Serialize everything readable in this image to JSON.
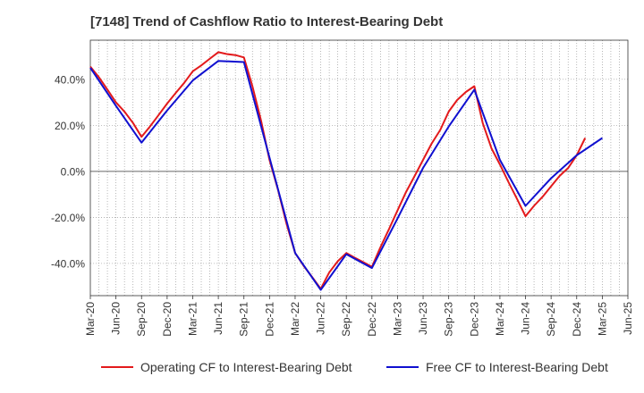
{
  "chart_data": {
    "type": "line",
    "title": "[7148]  Trend of Cashflow Ratio to Interest-Bearing Debt",
    "xlabel": "",
    "ylabel": "",
    "x": [
      "Mar-20",
      "Jun-20",
      "Sep-20",
      "Dec-20",
      "Mar-21",
      "Jun-21",
      "Sep-21",
      "Dec-21",
      "Mar-22",
      "Jun-22",
      "Sep-22",
      "Dec-22",
      "Mar-23",
      "Jun-23",
      "Sep-23",
      "Dec-23",
      "Mar-24",
      "Jun-24",
      "Sep-24",
      "Dec-24",
      "Mar-25",
      "Jun-25"
    ],
    "x_ticks": [
      "Mar-20",
      "Jun-20",
      "Sep-20",
      "Dec-20",
      "Mar-21",
      "Jun-21",
      "Sep-21",
      "Dec-21",
      "Mar-22",
      "Jun-22",
      "Sep-22",
      "Dec-22",
      "Mar-23",
      "Jun-23",
      "Sep-23",
      "Dec-23",
      "Mar-24",
      "Jun-24",
      "Sep-24",
      "Dec-24",
      "Mar-25",
      "Jun-25"
    ],
    "y_ticks": [
      "-40.0%",
      "-20.0%",
      "0.0%",
      "20.0%",
      "40.0%"
    ],
    "y_tick_values": [
      -40,
      -20,
      0,
      20,
      40
    ],
    "ylim": [
      -54,
      57
    ],
    "grid": true,
    "legend_position": "bottom",
    "series": [
      {
        "name": "Operating CF to Interest-Bearing Debt",
        "color": "#e31a1c",
        "values": [
          45.5,
          30,
          15,
          29.5,
          43.5,
          51.8,
          49.5,
          5,
          -35.5,
          -51,
          -35.5,
          -41.5,
          -17,
          5,
          26,
          37,
          3,
          -19.5,
          -6.5,
          7,
          null,
          null
        ]
      },
      {
        "name": "Free CF to Interest-Bearing Debt",
        "color": "#1010d0",
        "values": [
          45,
          28.5,
          12.5,
          26.5,
          39.5,
          48,
          47.5,
          6,
          -35.5,
          -51.5,
          -36,
          -42,
          -20.5,
          1.5,
          19.5,
          35.5,
          5,
          -15,
          -3,
          7,
          14.5,
          null
        ]
      }
    ],
    "extra_points": {
      "Operating CF to Interest-Bearing Debt": [
        {
          "x_index": 0.33,
          "y": 41
        },
        {
          "x_index": 0.67,
          "y": 35.5
        },
        {
          "x_index": 1.33,
          "y": 26
        },
        {
          "x_index": 1.67,
          "y": 21
        },
        {
          "x_index": 2.33,
          "y": 19.5
        },
        {
          "x_index": 2.67,
          "y": 24.5
        },
        {
          "x_index": 3.33,
          "y": 34
        },
        {
          "x_index": 3.67,
          "y": 38.5
        },
        {
          "x_index": 4.33,
          "y": 46
        },
        {
          "x_index": 4.67,
          "y": 49
        },
        {
          "x_index": 5.33,
          "y": 51
        },
        {
          "x_index": 5.67,
          "y": 50.5
        },
        {
          "x_index": 6.33,
          "y": 37
        },
        {
          "x_index": 6.67,
          "y": 22
        },
        {
          "x_index": 7.33,
          "y": -8
        },
        {
          "x_index": 7.67,
          "y": -23
        },
        {
          "x_index": 8.33,
          "y": -41
        },
        {
          "x_index": 8.67,
          "y": -46
        },
        {
          "x_index": 9.33,
          "y": -44
        },
        {
          "x_index": 9.67,
          "y": -39
        },
        {
          "x_index": 10.33,
          "y": -37.5
        },
        {
          "x_index": 10.67,
          "y": -39.5
        },
        {
          "x_index": 11.33,
          "y": -33
        },
        {
          "x_index": 11.67,
          "y": -25
        },
        {
          "x_index": 12.33,
          "y": -9
        },
        {
          "x_index": 12.67,
          "y": -2
        },
        {
          "x_index": 13.33,
          "y": 12
        },
        {
          "x_index": 13.67,
          "y": 18
        },
        {
          "x_index": 14.33,
          "y": 31
        },
        {
          "x_index": 14.67,
          "y": 34.5
        },
        {
          "x_index": 15.33,
          "y": 21
        },
        {
          "x_index": 15.67,
          "y": 10
        },
        {
          "x_index": 16.33,
          "y": -4.5
        },
        {
          "x_index": 16.67,
          "y": -12
        },
        {
          "x_index": 17.33,
          "y": -15
        },
        {
          "x_index": 17.67,
          "y": -11
        },
        {
          "x_index": 18.33,
          "y": -2
        },
        {
          "x_index": 18.67,
          "y": 1.5
        },
        {
          "x_index": 19.33,
          "y": 14.5
        }
      ],
      "Free CF to Interest-Bearing Debt": []
    }
  },
  "legend": {
    "items": [
      {
        "label": "Operating CF to Interest-Bearing Debt",
        "color": "#e31a1c"
      },
      {
        "label": "Free CF to Interest-Bearing Debt",
        "color": "#1010d0"
      }
    ]
  }
}
